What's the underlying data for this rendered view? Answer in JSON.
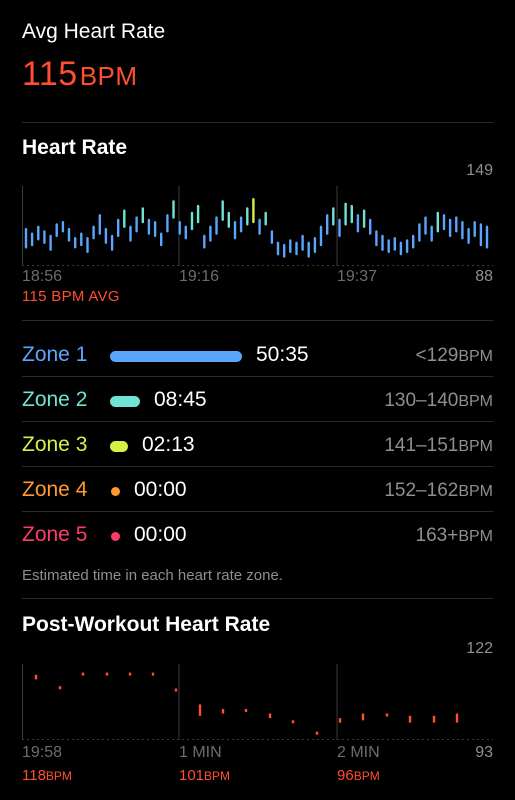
{
  "avg": {
    "title": "Avg Heart Rate",
    "value": "115",
    "unit": "BPM"
  },
  "heart_rate": {
    "title": "Heart Rate",
    "max": "149",
    "min": "88",
    "time_labels": [
      "18:56",
      "19:16",
      "19:37"
    ],
    "avg_label": "115 BPM AVG"
  },
  "zones": [
    {
      "name": "Zone 1",
      "time": "50:35",
      "range": "<129",
      "unit": "BPM",
      "color": "#5aa6ff",
      "bar": 0.62
    },
    {
      "name": "Zone 2",
      "time": "08:45",
      "range": "130–140",
      "unit": "BPM",
      "color": "#6fe3d4",
      "bar": 0.14
    },
    {
      "name": "Zone 3",
      "time": "02:13",
      "range": "141–151",
      "unit": "BPM",
      "color": "#d8f045",
      "bar": 0.05
    },
    {
      "name": "Zone 4",
      "time": "00:00",
      "range": "152–162",
      "unit": "BPM",
      "color": "#ff9a2e",
      "bar": 0
    },
    {
      "name": "Zone 5",
      "time": "00:00",
      "range": "163+",
      "unit": "BPM",
      "color": "#ff3b6b",
      "bar": 0
    }
  ],
  "zones_note": "Estimated time in each heart rate zone.",
  "post_workout": {
    "title": "Post-Workout Heart Rate",
    "max": "122",
    "min": "93",
    "labels": [
      {
        "time": "19:58",
        "value": "118",
        "unit": "BPM"
      },
      {
        "time": "1 MIN",
        "value": "101",
        "unit": "BPM"
      },
      {
        "time": "2 MIN",
        "value": "96",
        "unit": "BPM"
      }
    ]
  },
  "colors": {
    "accent": "#ff4f2f",
    "zone1": "#5aa6ff",
    "zone2": "#6fe3d4",
    "zone3": "#d8f045",
    "zone4": "#ff9a2e",
    "zone5": "#ff3b6b"
  },
  "chart_data": [
    {
      "type": "bar",
      "title": "Heart Rate",
      "x": [
        "18:56",
        "19:16",
        "19:37"
      ],
      "ylim": [
        88,
        149
      ],
      "note": "range bars per minute, colored by zone",
      "series": [
        {
          "values": [
            [
              98,
              116
            ],
            [
              100,
              112
            ],
            [
              105,
              118
            ],
            [
              102,
              114
            ],
            [
              96,
              110
            ],
            [
              108,
              120
            ],
            [
              112,
              122
            ],
            [
              104,
              116
            ],
            [
              98,
              108
            ],
            [
              100,
              112
            ],
            [
              94,
              108
            ],
            [
              106,
              118
            ],
            [
              110,
              128
            ],
            [
              102,
              116
            ],
            [
              96,
              110
            ],
            [
              108,
              124
            ],
            [
              116,
              132
            ],
            [
              104,
              118
            ],
            [
              112,
              126
            ],
            [
              120,
              134
            ],
            [
              110,
              124
            ],
            [
              108,
              122
            ],
            [
              100,
              112
            ],
            [
              112,
              128
            ],
            [
              124,
              140
            ],
            [
              110,
              122
            ],
            [
              106,
              118
            ],
            [
              114,
              130
            ],
            [
              120,
              136
            ],
            [
              98,
              110
            ],
            [
              104,
              118
            ],
            [
              110,
              126
            ],
            [
              122,
              140
            ],
            [
              116,
              130
            ],
            [
              106,
              122
            ],
            [
              112,
              126
            ],
            [
              118,
              134
            ],
            [
              120,
              142
            ],
            [
              110,
              124
            ],
            [
              118,
              130
            ],
            [
              102,
              114
            ],
            [
              92,
              104
            ],
            [
              90,
              102
            ],
            [
              94,
              106
            ],
            [
              92,
              104
            ],
            [
              96,
              110
            ],
            [
              90,
              104
            ],
            [
              94,
              108
            ],
            [
              100,
              118
            ],
            [
              110,
              128
            ],
            [
              118,
              134
            ],
            [
              108,
              124
            ],
            [
              118,
              138
            ],
            [
              120,
              136
            ],
            [
              112,
              128
            ],
            [
              116,
              132
            ],
            [
              110,
              124
            ],
            [
              100,
              114
            ],
            [
              96,
              110
            ],
            [
              94,
              106
            ],
            [
              96,
              108
            ],
            [
              92,
              104
            ],
            [
              94,
              106
            ],
            [
              98,
              110
            ],
            [
              104,
              120
            ],
            [
              110,
              126
            ],
            [
              104,
              118
            ],
            [
              112,
              130
            ],
            [
              114,
              128
            ],
            [
              108,
              124
            ],
            [
              112,
              126
            ],
            [
              106,
              122
            ],
            [
              102,
              116
            ],
            [
              108,
              122
            ],
            [
              100,
              120
            ],
            [
              98,
              118
            ]
          ]
        }
      ]
    },
    {
      "type": "scatter",
      "title": "Post-Workout Heart Rate",
      "x": [
        "19:58",
        "1 MIN",
        "2 MIN"
      ],
      "ylim": [
        93,
        122
      ],
      "series": [
        {
          "values": [
            [
              117,
              119
            ],
            [
              113,
              114
            ],
            [
              119,
              120
            ],
            [
              119,
              120
            ],
            [
              119,
              120
            ],
            [
              119,
              120
            ],
            [
              112,
              113
            ],
            [
              101,
              106
            ],
            [
              102,
              104
            ],
            [
              103,
              104
            ],
            [
              100,
              102
            ],
            [
              98,
              99
            ],
            [
              93,
              94
            ],
            [
              98,
              100
            ],
            [
              99,
              102
            ],
            [
              101,
              102
            ],
            [
              98,
              101
            ],
            [
              98,
              101
            ],
            [
              98,
              102
            ]
          ]
        }
      ]
    }
  ]
}
